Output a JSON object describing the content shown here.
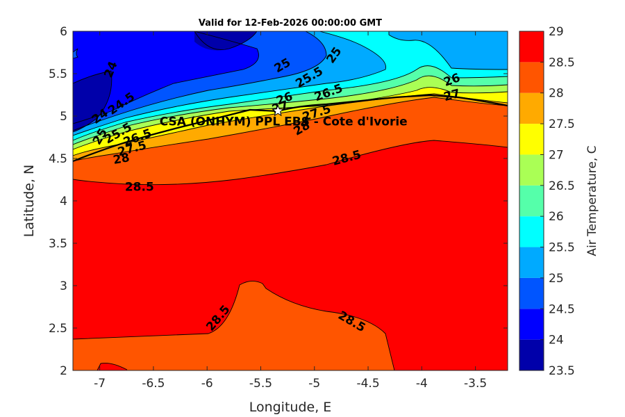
{
  "chart_data": {
    "type": "contour",
    "title": "Valid for 12-Feb-2026 00:00:00 GMT",
    "xlabel": "Longitude, E",
    "ylabel": "Latitude, N",
    "xlim": [
      -7.25,
      -3.2
    ],
    "ylim": [
      2,
      6
    ],
    "x_ticks": [
      -7,
      -6.5,
      -6,
      -5.5,
      -5,
      -4.5,
      -4,
      -3.5
    ],
    "x_tick_labels": [
      "-7",
      "-6.5",
      "-6",
      "-5.5",
      "-5",
      "-4.5",
      "-4",
      "-3.5"
    ],
    "y_ticks": [
      2,
      2.5,
      3,
      3.5,
      4,
      4.5,
      5,
      5.5,
      6
    ],
    "y_tick_labels": [
      "2",
      "2.5",
      "3",
      "3.5",
      "4",
      "4.5",
      "5",
      "5.5",
      "6"
    ],
    "colorbar": {
      "label": "Air Temperature, C",
      "levels": [
        23.5,
        24,
        24.5,
        25,
        25.5,
        26,
        26.5,
        27,
        27.5,
        28,
        28.5,
        29
      ],
      "tick_labels": [
        "23.5",
        "24",
        "24.5",
        "25",
        "25.5",
        "26",
        "26.5",
        "27",
        "27.5",
        "28",
        "28.5",
        "29"
      ],
      "colors": [
        "#0000aa",
        "#0000ff",
        "#0055ff",
        "#00aaff",
        "#00ffff",
        "#55ffaa",
        "#aaff55",
        "#ffff00",
        "#ffaa00",
        "#ff5500",
        "#ff0000"
      ]
    },
    "contour_labels": [
      {
        "text": "24",
        "lon": -6.9,
        "lat": 5.55
      },
      {
        "text": "24",
        "lon": -7.0,
        "lat": 5.0
      },
      {
        "text": "24.5",
        "lon": -6.8,
        "lat": 5.15
      },
      {
        "text": "25",
        "lon": -5.3,
        "lat": 5.6
      },
      {
        "text": "25",
        "lon": -4.82,
        "lat": 5.72
      },
      {
        "text": "25",
        "lon": -7.0,
        "lat": 4.76
      },
      {
        "text": "25.5",
        "lon": -5.05,
        "lat": 5.46
      },
      {
        "text": "25.5",
        "lon": -6.83,
        "lat": 4.8
      },
      {
        "text": "26",
        "lon": -5.28,
        "lat": 5.21
      },
      {
        "text": "26",
        "lon": -3.72,
        "lat": 5.43
      },
      {
        "text": "26.5",
        "lon": -4.87,
        "lat": 5.28
      },
      {
        "text": "26.5",
        "lon": -6.65,
        "lat": 4.75
      },
      {
        "text": "27",
        "lon": -5.32,
        "lat": 5.11
      },
      {
        "text": "27",
        "lon": -3.72,
        "lat": 5.25
      },
      {
        "text": "27.5",
        "lon": -4.98,
        "lat": 5.04
      },
      {
        "text": "27.5",
        "lon": -6.7,
        "lat": 4.62
      },
      {
        "text": "28",
        "lon": -5.12,
        "lat": 4.86
      },
      {
        "text": "28",
        "lon": -6.8,
        "lat": 4.5
      },
      {
        "text": "28.5",
        "lon": -6.63,
        "lat": 4.17
      },
      {
        "text": "28.5",
        "lon": -4.7,
        "lat": 4.51
      },
      {
        "text": "28.5",
        "lon": -5.9,
        "lat": 2.62
      },
      {
        "text": "28.5",
        "lon": -4.65,
        "lat": 2.58
      }
    ],
    "site": {
      "name": "CSA (ONHYM) PPL EBS - Cote d'Ivorie",
      "lon": -5.34,
      "lat": 5.06
    }
  }
}
